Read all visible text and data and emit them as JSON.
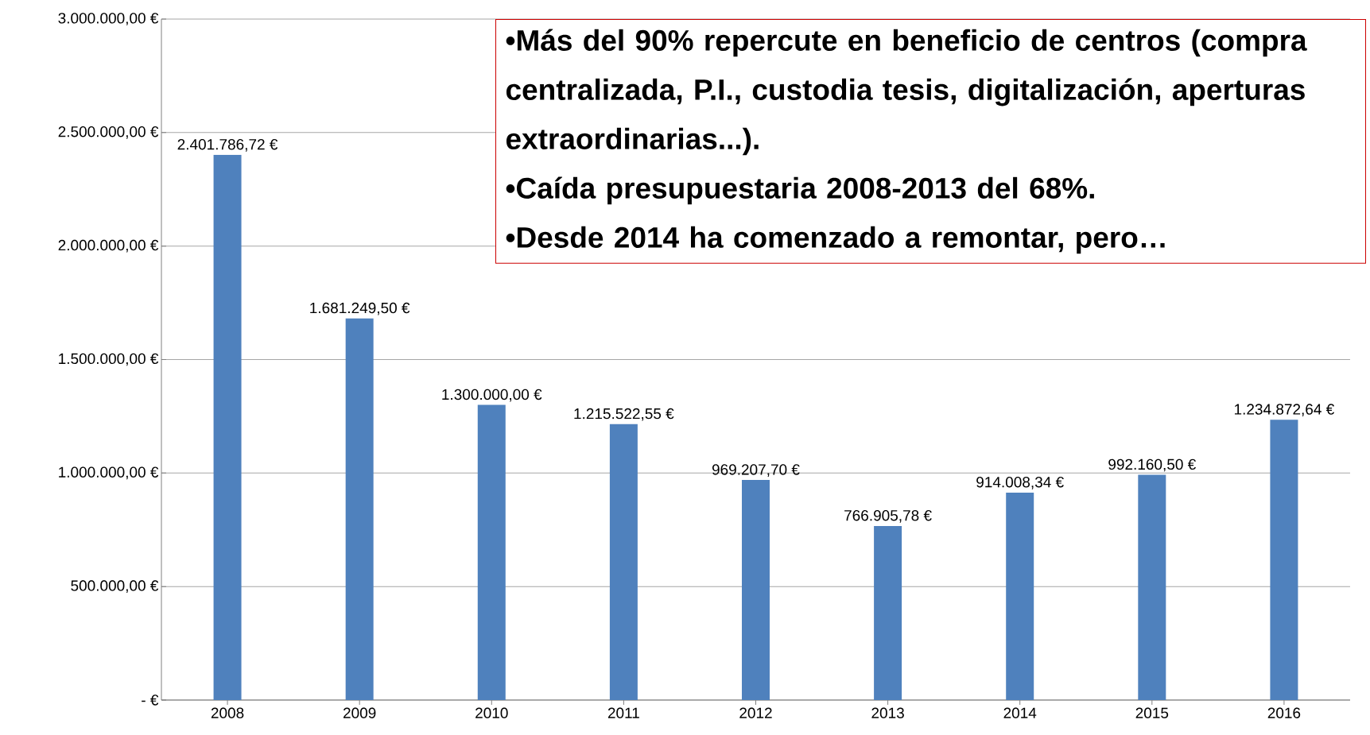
{
  "chart_data": {
    "type": "bar",
    "categories": [
      "2008",
      "2009",
      "2010",
      "2011",
      "2012",
      "2013",
      "2014",
      "2015",
      "2016"
    ],
    "values": [
      2401786.72,
      1681249.5,
      1300000.0,
      1215522.55,
      969207.7,
      766905.78,
      914008.34,
      992160.5,
      1234872.64
    ],
    "value_labels": [
      "2.401.786,72 €",
      "1.681.249,50 €",
      "1.300.000,00 €",
      "1.215.522,55 €",
      "969.207,70 €",
      "766.905,78 €",
      "914.008,34 €",
      "992.160,50 €",
      "1.234.872,64 €"
    ],
    "color": "#4f81bd",
    "ylim": [
      0,
      3000000
    ],
    "yticks": [
      {
        "value": 0,
        "label": "-   €"
      },
      {
        "value": 500000,
        "label": "500.000,00 €"
      },
      {
        "value": 1000000,
        "label": "1.000.000,00 €"
      },
      {
        "value": 1500000,
        "label": "1.500.000,00 €"
      },
      {
        "value": 2000000,
        "label": "2.000.000,00 €"
      },
      {
        "value": 2500000,
        "label": "2.500.000,00 €"
      },
      {
        "value": 3000000,
        "label": "3.000.000,00 €"
      }
    ],
    "grid": "y",
    "annotations": [
      "•Más del 90% repercute en beneficio de centros (compra centralizada, P.I., custodia tesis, digitalización, aperturas extraordinarias...).",
      "•Caída presupuestaria 2008-2013 del 68%.",
      "•Desde 2014 ha comenzado a remontar, pero…"
    ]
  }
}
